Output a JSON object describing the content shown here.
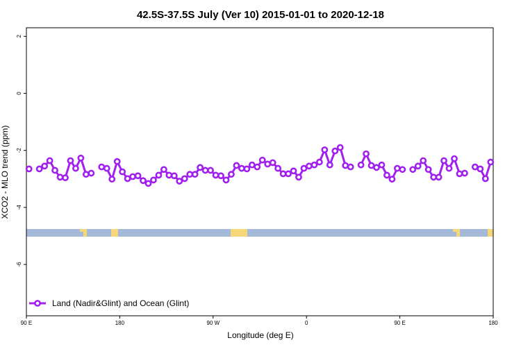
{
  "chart_data": {
    "type": "line",
    "title": "42.5S-37.5S July (Ver 10)   2015-01-01 to 2020-12-18",
    "x_label": "Longitude (deg E)",
    "y_label": "XCO2 - MLO trend (ppm)",
    "xlim": [
      90,
      540
    ],
    "ylim": [
      -7.8,
      2.3
    ],
    "xticks": [
      {
        "value": 90,
        "label": "90 E"
      },
      {
        "value": 180,
        "label": "180"
      },
      {
        "value": 270,
        "label": "90 W"
      },
      {
        "value": 360,
        "label": "0"
      },
      {
        "value": 450,
        "label": "90 E"
      },
      {
        "value": 540,
        "label": "180"
      }
    ],
    "yticks": [
      -6,
      -4,
      -2,
      0,
      2
    ],
    "legend": "bottomleft",
    "x": [
      92.5,
      97.5,
      102.5,
      107.5,
      112.5,
      117.5,
      122.5,
      127.5,
      132.5,
      137.5,
      142.5,
      147.5,
      152.5,
      157.5,
      162.5,
      167.5,
      172.5,
      177.5,
      182.5,
      187.5,
      192.5,
      197.5,
      202.5,
      207.5,
      212.5,
      217.5,
      222.5,
      227.5,
      232.5,
      237.5,
      242.5,
      247.5,
      252.5,
      257.5,
      262.5,
      267.5,
      272.5,
      277.5,
      282.5,
      287.5,
      292.5,
      297.5,
      302.5,
      307.5,
      312.5,
      317.5,
      322.5,
      327.5,
      332.5,
      337.5,
      342.5,
      347.5,
      352.5,
      357.5,
      362.5,
      367.5,
      372.5,
      377.5,
      382.5,
      387.5,
      392.5,
      397.5,
      402.5,
      407.5,
      412.5,
      417.5,
      422.5,
      427.5,
      432.5,
      437.5,
      442.5,
      447.5,
      452.5,
      457.5,
      462.5,
      467.5,
      472.5,
      477.5,
      482.5,
      487.5,
      492.5,
      497.5,
      502.5,
      507.5,
      512.5,
      517.5,
      522.5,
      527.5,
      532.5,
      537.5
    ],
    "series": [
      {
        "name": "Land (Nadir&Glint) and Ocean (Glint)",
        "color": "#a020f0",
        "values": [
          -2.65,
          null,
          -2.65,
          -2.55,
          -2.36,
          -2.7,
          -2.94,
          -2.96,
          -2.36,
          -2.63,
          -2.27,
          -2.84,
          -2.8,
          null,
          -2.58,
          -2.63,
          -3.01,
          -2.39,
          -2.75,
          -2.99,
          -2.92,
          -2.89,
          -3.06,
          -3.16,
          -3.04,
          -2.87,
          -2.67,
          -2.87,
          -2.89,
          -3.08,
          -2.99,
          -2.84,
          -2.84,
          -2.6,
          -2.7,
          -2.7,
          -2.87,
          -2.89,
          -3.04,
          -2.84,
          -2.53,
          -2.63,
          -2.65,
          -2.51,
          -2.58,
          -2.34,
          -2.48,
          -2.43,
          -2.63,
          -2.82,
          -2.82,
          -2.72,
          -2.94,
          -2.63,
          -2.55,
          -2.51,
          -2.41,
          -1.98,
          -2.51,
          -2.02,
          -1.9,
          -2.53,
          -2.58,
          null,
          -2.51,
          -2.12,
          -2.53,
          -2.6,
          -2.51,
          -2.87,
          -3.01,
          -2.63,
          -2.67,
          null,
          -2.67,
          -2.55,
          -2.36,
          -2.67,
          -2.94,
          -2.94,
          -2.36,
          -2.63,
          -2.29,
          -2.82,
          -2.8,
          null,
          -2.58,
          -2.65,
          -2.99,
          -2.41
        ]
      }
    ]
  }
}
